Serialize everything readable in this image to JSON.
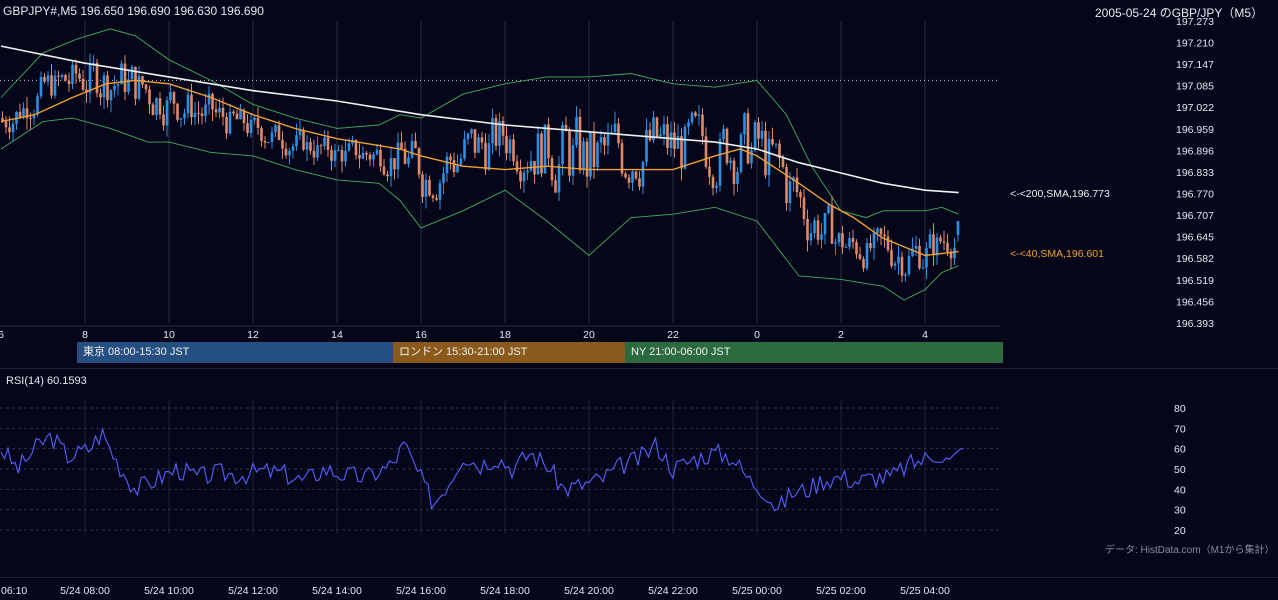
{
  "header": {
    "symbol_info": "GBPJPY#,M5 196.650 196.690 196.630 196.690",
    "chart_title": "2005-05-24 のGBP/JPY（M5）"
  },
  "colors": {
    "background": "#06061a",
    "candle_up": "#2e8fe0",
    "candle_down": "#e08868",
    "sma200": "#f0f0f0",
    "sma40": "#f0a030",
    "bollinger": "#3fae5a",
    "rsi_line": "#5560ff",
    "session_tokyo": "#254f80",
    "session_london": "#8a5a1c",
    "session_ny": "#2a6a3e"
  },
  "sessions": [
    {
      "label": "東京 08:00-15:30 JST",
      "color": "#254f80"
    },
    {
      "label": "ロンドン 15:30-21:00 JST",
      "color": "#8a5a1c"
    },
    {
      "label": "NY 21:00-06:00 JST",
      "color": "#2a6a3e"
    }
  ],
  "indicator_labels": {
    "sma200": "<-<200,SMA,196.773",
    "sma40": "<-<40,SMA,196.601"
  },
  "rsi": {
    "title": "RSI(14) 60.1593",
    "ticks": [
      "80",
      "70",
      "60",
      "50",
      "40",
      "30",
      "20"
    ]
  },
  "credit": "データ: HistData.com（M1から集計）",
  "chart_data": [
    {
      "type": "candlestick",
      "title": "2005-05-24 のGBP/JPY（M5）",
      "y_ticks": [
        "197.273",
        "197.210",
        "197.147",
        "197.085",
        "197.022",
        "196.959",
        "196.896",
        "196.833",
        "196.770",
        "196.707",
        "196.645",
        "196.582",
        "196.519",
        "196.456",
        "196.393"
      ],
      "ylim": [
        196.393,
        197.273
      ],
      "x_ticks_hours": [
        "6",
        "8",
        "10",
        "12",
        "14",
        "16",
        "18",
        "20",
        "22",
        "0",
        "2",
        "4"
      ],
      "reference_line": 197.1,
      "last_bar": {
        "open": 196.65,
        "high": 196.69,
        "low": 196.63,
        "close": 196.69
      },
      "series": [
        {
          "name": "200,SMA",
          "last_value": 196.773
        },
        {
          "name": "40,SMA",
          "last_value": 196.601
        }
      ],
      "sma200_path": [
        [
          6.0,
          197.2
        ],
        [
          8.0,
          197.15
        ],
        [
          10.0,
          197.11
        ],
        [
          12.0,
          197.07
        ],
        [
          14.0,
          197.04
        ],
        [
          16.0,
          197.0
        ],
        [
          18.0,
          196.97
        ],
        [
          20.0,
          196.95
        ],
        [
          22.0,
          196.93
        ],
        [
          23.0,
          196.92
        ],
        [
          24.0,
          196.9
        ],
        [
          25.0,
          196.86
        ],
        [
          26.0,
          196.83
        ],
        [
          27.0,
          196.8
        ],
        [
          28.0,
          196.78
        ],
        [
          28.8,
          196.773
        ]
      ],
      "sma40_path": [
        [
          6.0,
          196.98
        ],
        [
          6.8,
          197.0
        ],
        [
          7.7,
          197.05
        ],
        [
          8.5,
          197.09
        ],
        [
          9.2,
          197.1
        ],
        [
          10.0,
          197.09
        ],
        [
          11.0,
          197.05
        ],
        [
          12.0,
          197.0
        ],
        [
          13.0,
          196.96
        ],
        [
          14.0,
          196.93
        ],
        [
          15.0,
          196.91
        ],
        [
          15.5,
          196.9
        ],
        [
          16.0,
          196.88
        ],
        [
          17.0,
          196.85
        ],
        [
          18.0,
          196.84
        ],
        [
          19.0,
          196.85
        ],
        [
          20.0,
          196.84
        ],
        [
          21.0,
          196.84
        ],
        [
          22.0,
          196.84
        ],
        [
          23.0,
          196.88
        ],
        [
          23.6,
          196.9
        ],
        [
          24.0,
          196.88
        ],
        [
          25.0,
          196.8
        ],
        [
          25.7,
          196.74
        ],
        [
          26.3,
          196.7
        ],
        [
          27.0,
          196.64
        ],
        [
          27.6,
          196.61
        ],
        [
          28.0,
          196.59
        ],
        [
          28.8,
          196.601
        ]
      ],
      "bollinger_upper": [
        [
          6.0,
          197.05
        ],
        [
          7.0,
          197.18
        ],
        [
          7.8,
          197.22
        ],
        [
          8.6,
          197.25
        ],
        [
          9.2,
          197.23
        ],
        [
          10.0,
          197.16
        ],
        [
          11.0,
          197.1
        ],
        [
          12.0,
          197.03
        ],
        [
          13.0,
          196.99
        ],
        [
          14.0,
          196.96
        ],
        [
          15.0,
          196.97
        ],
        [
          15.5,
          197.0
        ],
        [
          16.0,
          196.99
        ],
        [
          17.0,
          197.06
        ],
        [
          18.0,
          197.09
        ],
        [
          19.0,
          197.11
        ],
        [
          20.0,
          197.11
        ],
        [
          21.0,
          197.12
        ],
        [
          22.0,
          197.09
        ],
        [
          23.0,
          197.08
        ],
        [
          24.0,
          197.1
        ],
        [
          24.7,
          197.0
        ],
        [
          25.3,
          196.85
        ],
        [
          26.0,
          196.72
        ],
        [
          26.6,
          196.7
        ],
        [
          27.0,
          196.72
        ],
        [
          28.0,
          196.72
        ],
        [
          28.4,
          196.73
        ],
        [
          28.8,
          196.71
        ]
      ],
      "bollinger_lower": [
        [
          6.0,
          196.9
        ],
        [
          7.0,
          196.98
        ],
        [
          7.7,
          196.99
        ],
        [
          8.6,
          196.96
        ],
        [
          9.5,
          196.92
        ],
        [
          10.0,
          196.92
        ],
        [
          11.0,
          196.89
        ],
        [
          12.0,
          196.88
        ],
        [
          13.0,
          196.84
        ],
        [
          14.0,
          196.81
        ],
        [
          15.0,
          196.8
        ],
        [
          15.5,
          196.75
        ],
        [
          16.0,
          196.67
        ],
        [
          17.0,
          196.72
        ],
        [
          18.0,
          196.78
        ],
        [
          19.0,
          196.69
        ],
        [
          20.0,
          196.59
        ],
        [
          21.0,
          196.7
        ],
        [
          22.0,
          196.71
        ],
        [
          23.0,
          196.73
        ],
        [
          24.0,
          196.69
        ],
        [
          25.0,
          196.53
        ],
        [
          26.0,
          196.52
        ],
        [
          27.0,
          196.5
        ],
        [
          27.5,
          196.46
        ],
        [
          28.0,
          196.49
        ],
        [
          28.4,
          196.54
        ],
        [
          28.8,
          196.56
        ]
      ]
    },
    {
      "type": "line",
      "title": "RSI(14) 60.1593",
      "ylim": [
        20,
        80
      ],
      "y_ticks": [
        80,
        70,
        60,
        50,
        40,
        30,
        20
      ],
      "x_ticks": [
        "06:10",
        "5/24 08:00",
        "5/24 10:00",
        "5/24 12:00",
        "5/24 14:00",
        "5/24 16:00",
        "5/24 18:00",
        "5/24 20:00",
        "5/24 22:00",
        "5/25 00:00",
        "5/25 02:00",
        "5/25 04:00"
      ],
      "series": [
        {
          "name": "RSI(14)",
          "last_value": 60.1593
        }
      ],
      "key_points": [
        [
          6.0,
          60
        ],
        [
          6.4,
          50
        ],
        [
          6.9,
          62
        ],
        [
          7.2,
          66
        ],
        [
          7.6,
          56
        ],
        [
          8.1,
          60
        ],
        [
          8.4,
          68
        ],
        [
          8.8,
          52
        ],
        [
          9.2,
          40
        ],
        [
          9.7,
          45
        ],
        [
          10.2,
          50
        ],
        [
          10.7,
          46
        ],
        [
          11.2,
          48
        ],
        [
          11.7,
          47
        ],
        [
          12.2,
          49
        ],
        [
          12.7,
          48
        ],
        [
          13.2,
          44
        ],
        [
          13.7,
          50
        ],
        [
          14.2,
          47
        ],
        [
          14.7,
          46
        ],
        [
          15.3,
          52
        ],
        [
          15.6,
          62
        ],
        [
          16.0,
          45
        ],
        [
          16.3,
          33
        ],
        [
          16.7,
          45
        ],
        [
          17.0,
          57
        ],
        [
          17.4,
          52
        ],
        [
          17.8,
          56
        ],
        [
          18.2,
          50
        ],
        [
          18.6,
          58
        ],
        [
          19.0,
          52
        ],
        [
          19.4,
          40
        ],
        [
          19.8,
          42
        ],
        [
          20.3,
          45
        ],
        [
          20.8,
          52
        ],
        [
          21.2,
          55
        ],
        [
          21.6,
          62
        ],
        [
          22.0,
          50
        ],
        [
          22.5,
          55
        ],
        [
          23.0,
          58
        ],
        [
          23.4,
          56
        ],
        [
          23.8,
          45
        ],
        [
          24.2,
          39
        ],
        [
          24.5,
          30
        ],
        [
          24.8,
          38
        ],
        [
          25.2,
          40
        ],
        [
          25.6,
          45
        ],
        [
          26.0,
          46
        ],
        [
          26.4,
          44
        ],
        [
          26.8,
          46
        ],
        [
          27.2,
          46
        ],
        [
          27.6,
          52
        ],
        [
          28.0,
          55
        ],
        [
          28.3,
          58
        ],
        [
          28.6,
          53
        ],
        [
          28.9,
          60
        ]
      ]
    }
  ]
}
